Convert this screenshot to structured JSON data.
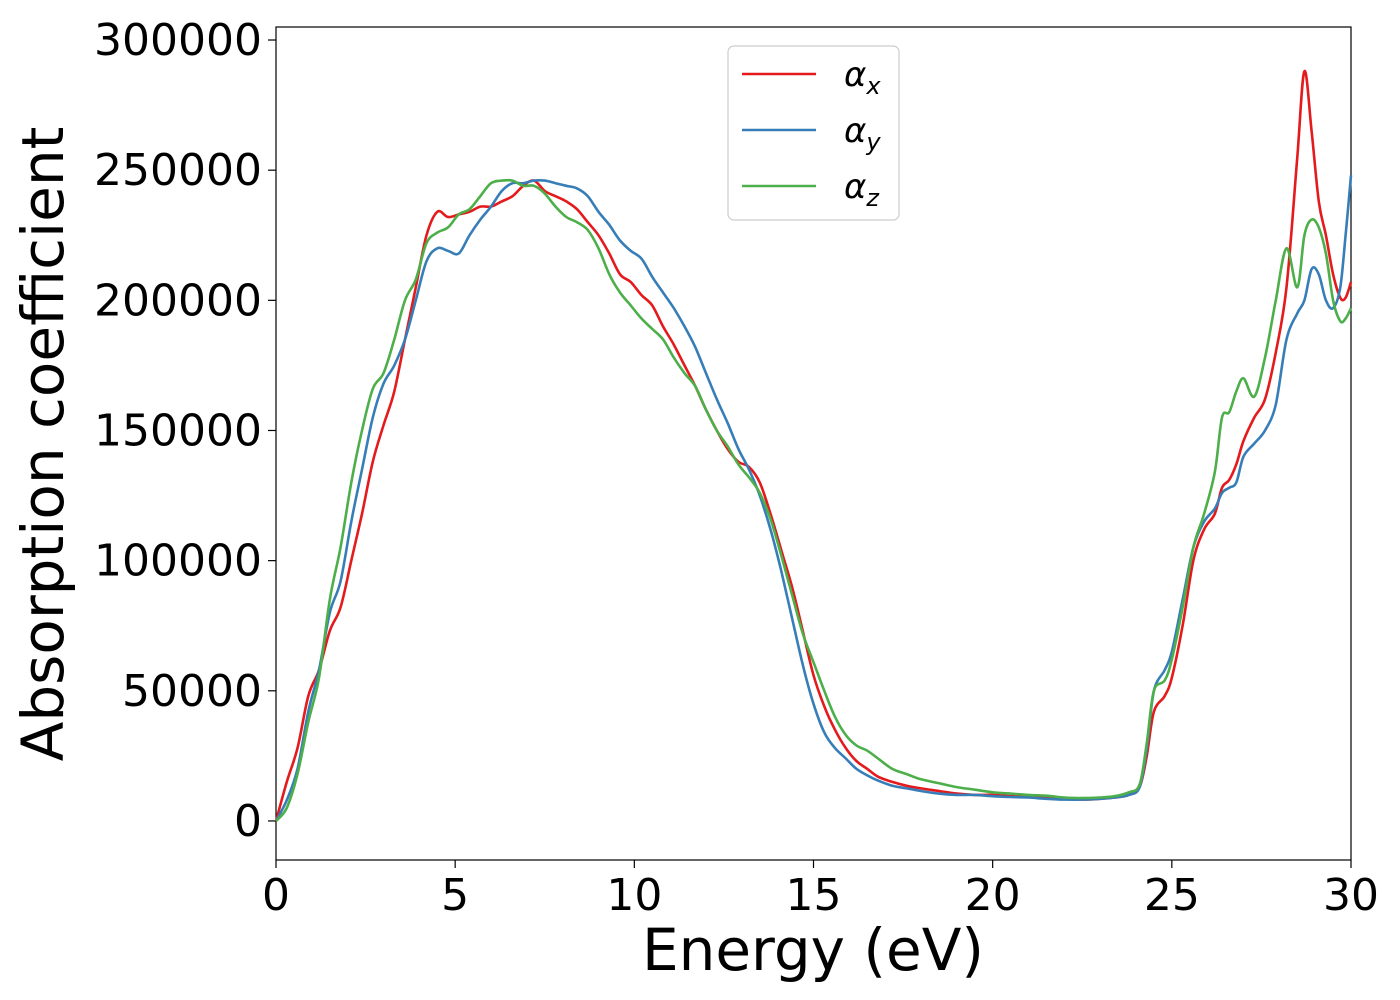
{
  "chart_data": {
    "type": "line",
    "title": "",
    "xlabel": "Energy (eV)",
    "ylabel": "Absorption coefficient",
    "xlim": [
      0,
      30
    ],
    "ylim": [
      -15000,
      305000
    ],
    "xticks": [
      0,
      5,
      10,
      15,
      20,
      25,
      30
    ],
    "xtick_labels": [
      "0",
      "5",
      "10",
      "15",
      "20",
      "25",
      "30"
    ],
    "yticks": [
      0,
      50000,
      100000,
      150000,
      200000,
      250000,
      300000
    ],
    "ytick_labels": [
      "0",
      "50000",
      "100000",
      "150000",
      "200000",
      "250000",
      "300000"
    ],
    "grid": false,
    "legend_position": "top-center",
    "series": [
      {
        "name": "α_x",
        "symbol": "α",
        "subscript": "x",
        "color": "#e41a1c",
        "x": [
          0,
          0.3,
          0.6,
          0.9,
          1.2,
          1.5,
          1.8,
          2.1,
          2.4,
          2.7,
          3.0,
          3.3,
          3.6,
          3.9,
          4.2,
          4.5,
          4.8,
          5.1,
          5.4,
          5.7,
          6.0,
          6.3,
          6.6,
          6.9,
          7.2,
          7.5,
          7.8,
          8.1,
          8.4,
          8.7,
          9.0,
          9.3,
          9.6,
          9.9,
          10.2,
          10.5,
          10.8,
          11.1,
          11.4,
          11.7,
          12.0,
          12.3,
          12.6,
          12.9,
          13.2,
          13.5,
          13.8,
          14.1,
          14.4,
          14.7,
          15.0,
          15.3,
          15.6,
          15.9,
          16.2,
          16.5,
          16.8,
          17.2,
          17.6,
          18.0,
          18.5,
          19.0,
          19.5,
          20.0,
          20.5,
          21.0,
          21.5,
          22.0,
          22.5,
          23.0,
          23.4,
          23.8,
          24.1,
          24.3,
          24.5,
          24.8,
          25.0,
          25.3,
          25.6,
          25.9,
          26.2,
          26.4,
          26.6,
          26.8,
          27.0,
          27.3,
          27.6,
          27.9,
          28.2,
          28.5,
          28.7,
          28.9,
          29.1,
          29.3,
          29.5,
          29.7,
          29.85,
          30.0
        ],
        "values": [
          0,
          15000,
          28000,
          48000,
          58000,
          73000,
          82000,
          100000,
          118000,
          138000,
          152000,
          165000,
          185000,
          205000,
          225000,
          234000,
          232000,
          233000,
          234000,
          236000,
          236000,
          238000,
          240000,
          244000,
          246000,
          242000,
          240000,
          238000,
          235000,
          230000,
          225000,
          218000,
          210000,
          207000,
          202000,
          198000,
          190000,
          183000,
          175000,
          167000,
          158000,
          150000,
          143000,
          138000,
          136000,
          130000,
          118000,
          104000,
          90000,
          73000,
          56000,
          44000,
          35000,
          28000,
          23000,
          20000,
          17000,
          15000,
          13500,
          12500,
          11500,
          10500,
          10000,
          10000,
          9500,
          9200,
          9000,
          8500,
          8200,
          8500,
          9000,
          10000,
          13000,
          25000,
          42000,
          48000,
          55000,
          75000,
          100000,
          112000,
          118000,
          128000,
          131000,
          137000,
          146000,
          155000,
          162000,
          180000,
          205000,
          255000,
          288000,
          265000,
          238000,
          225000,
          210000,
          201000,
          201000,
          207000
        ]
      },
      {
        "name": "α_y",
        "symbol": "α",
        "subscript": "y",
        "color": "#377eb8",
        "x": [
          0,
          0.3,
          0.6,
          0.9,
          1.2,
          1.5,
          1.8,
          2.1,
          2.4,
          2.7,
          3.0,
          3.3,
          3.6,
          3.9,
          4.2,
          4.5,
          4.8,
          5.1,
          5.4,
          5.7,
          6.0,
          6.3,
          6.6,
          6.9,
          7.2,
          7.5,
          7.8,
          8.1,
          8.4,
          8.7,
          9.0,
          9.3,
          9.6,
          9.9,
          10.2,
          10.5,
          10.8,
          11.1,
          11.4,
          11.7,
          12.0,
          12.3,
          12.6,
          12.9,
          13.2,
          13.5,
          13.8,
          14.1,
          14.4,
          14.7,
          15.0,
          15.3,
          15.6,
          15.9,
          16.2,
          16.5,
          16.8,
          17.2,
          17.6,
          18.0,
          18.5,
          19.0,
          19.5,
          20.0,
          20.5,
          21.0,
          21.5,
          22.0,
          22.5,
          23.0,
          23.4,
          23.8,
          24.1,
          24.3,
          24.5,
          24.8,
          25.0,
          25.3,
          25.6,
          25.9,
          26.2,
          26.4,
          26.6,
          26.8,
          27.0,
          27.3,
          27.6,
          27.9,
          28.2,
          28.5,
          28.7,
          28.9,
          29.1,
          29.3,
          29.5,
          29.7,
          29.85,
          30.0
        ],
        "values": [
          0,
          8000,
          20000,
          42000,
          58000,
          80000,
          92000,
          115000,
          135000,
          155000,
          168000,
          175000,
          185000,
          200000,
          215000,
          220000,
          219000,
          218000,
          225000,
          231000,
          236000,
          242000,
          245000,
          245000,
          246000,
          246000,
          245000,
          244000,
          243000,
          240000,
          234000,
          229000,
          223000,
          219000,
          216000,
          209000,
          203000,
          197000,
          190000,
          182000,
          172000,
          162000,
          153000,
          143000,
          135000,
          125000,
          112000,
          96000,
          78000,
          60000,
          45000,
          34000,
          28000,
          24000,
          20000,
          17500,
          15500,
          13500,
          12500,
          11500,
          10500,
          10000,
          10000,
          9500,
          9200,
          9000,
          8500,
          8200,
          8200,
          8500,
          9000,
          10000,
          13000,
          28000,
          50000,
          58000,
          65000,
          85000,
          105000,
          115000,
          120000,
          126000,
          128000,
          130000,
          140000,
          145000,
          150000,
          160000,
          185000,
          195000,
          200000,
          212000,
          210000,
          200000,
          197000,
          205000,
          225000,
          248000
        ]
      },
      {
        "name": "α_z",
        "symbol": "α",
        "subscript": "z",
        "color": "#4daf4a",
        "x": [
          0,
          0.3,
          0.6,
          0.9,
          1.2,
          1.5,
          1.8,
          2.1,
          2.4,
          2.7,
          3.0,
          3.3,
          3.6,
          3.9,
          4.2,
          4.5,
          4.8,
          5.1,
          5.4,
          5.7,
          6.0,
          6.3,
          6.6,
          6.9,
          7.2,
          7.5,
          7.8,
          8.1,
          8.4,
          8.7,
          9.0,
          9.3,
          9.6,
          9.9,
          10.2,
          10.5,
          10.8,
          11.1,
          11.4,
          11.7,
          12.0,
          12.3,
          12.6,
          12.9,
          13.2,
          13.5,
          13.8,
          14.1,
          14.4,
          14.7,
          15.0,
          15.3,
          15.6,
          15.9,
          16.2,
          16.5,
          16.8,
          17.2,
          17.6,
          18.0,
          18.5,
          19.0,
          19.5,
          20.0,
          20.5,
          21.0,
          21.5,
          22.0,
          22.5,
          23.0,
          23.4,
          23.8,
          24.1,
          24.3,
          24.5,
          24.8,
          25.0,
          25.3,
          25.6,
          25.9,
          26.2,
          26.4,
          26.6,
          26.8,
          27.0,
          27.3,
          27.6,
          27.9,
          28.2,
          28.5,
          28.7,
          28.9,
          29.1,
          29.3,
          29.5,
          29.7,
          29.85,
          30.0
        ],
        "values": [
          0,
          5000,
          18000,
          38000,
          55000,
          85000,
          105000,
          130000,
          150000,
          166000,
          172000,
          185000,
          200000,
          208000,
          222000,
          226000,
          228000,
          233000,
          235000,
          240000,
          245000,
          246000,
          246000,
          244000,
          244000,
          241000,
          236000,
          232000,
          230000,
          227000,
          220000,
          210000,
          203000,
          198000,
          193000,
          189000,
          185000,
          178000,
          172000,
          167000,
          158000,
          150000,
          144000,
          137000,
          132000,
          126000,
          116000,
          102000,
          87000,
          72000,
          61000,
          50000,
          40000,
          33000,
          29000,
          27000,
          24000,
          20000,
          18000,
          16000,
          14500,
          13000,
          12000,
          11000,
          10500,
          10000,
          9700,
          9000,
          8800,
          9000,
          9500,
          11000,
          14000,
          30000,
          50000,
          54000,
          62000,
          82000,
          105000,
          118000,
          134000,
          155000,
          157000,
          165000,
          170000,
          163000,
          178000,
          200000,
          220000,
          205000,
          225000,
          231000,
          228000,
          218000,
          200000,
          192000,
          193000,
          197000
        ]
      }
    ]
  }
}
